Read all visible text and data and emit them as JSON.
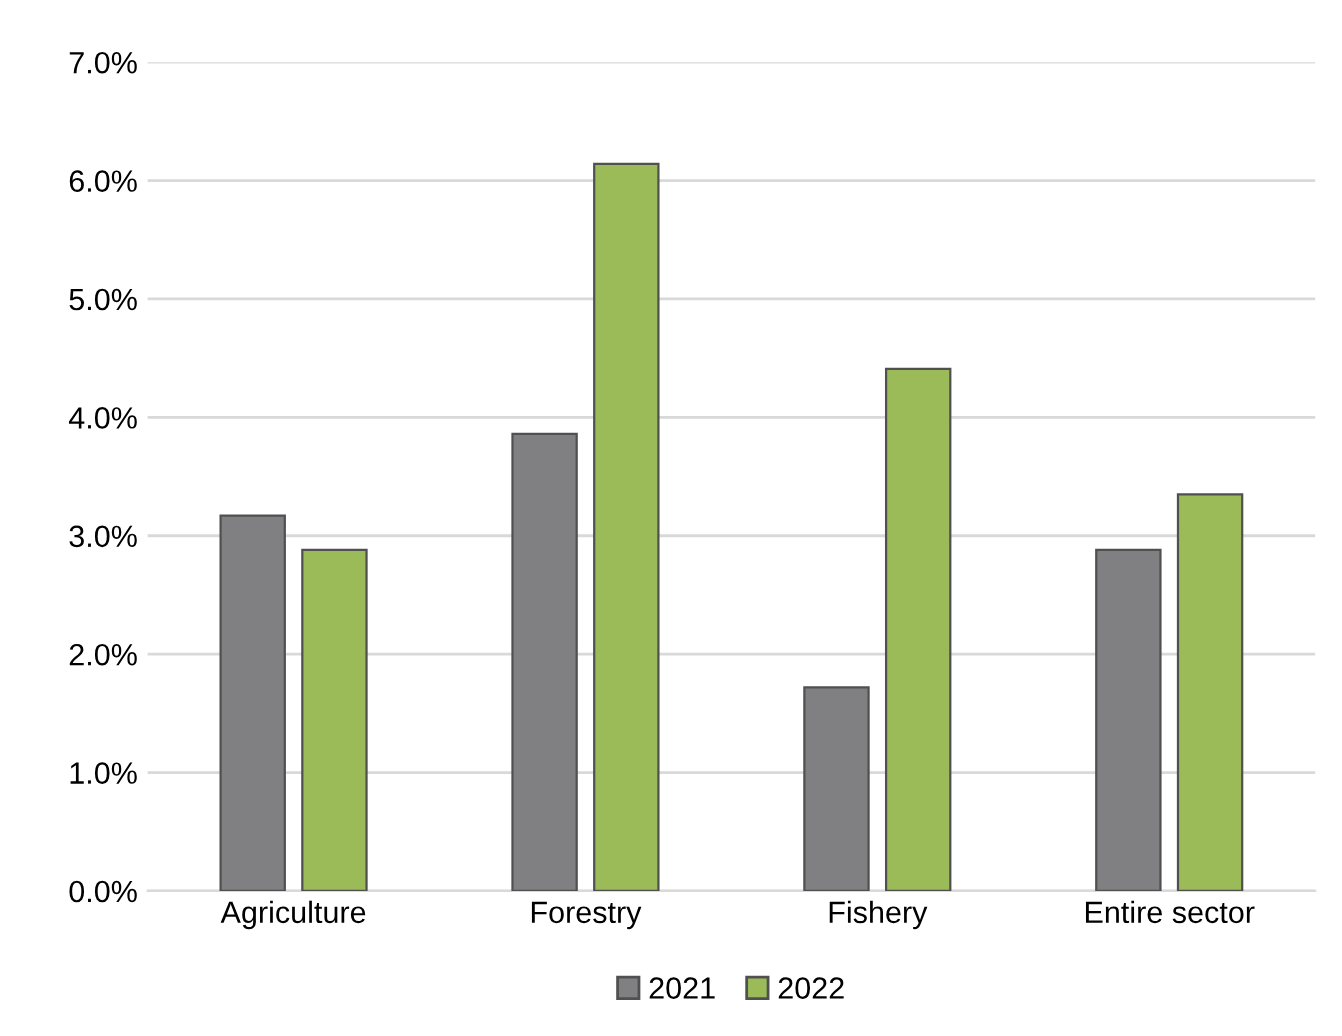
{
  "chart_data": {
    "type": "bar",
    "categories": [
      "Agriculture",
      "Forestry",
      "Fishery",
      "Entire sector"
    ],
    "series": [
      {
        "name": "2021",
        "color": "#808083",
        "values": [
          3.17,
          3.86,
          1.72,
          2.88
        ]
      },
      {
        "name": "2022",
        "color": "#9bbb59",
        "values": [
          2.88,
          6.14,
          4.41,
          3.35
        ]
      }
    ],
    "ylim": [
      0,
      7
    ],
    "yticks": [
      {
        "value": 0,
        "label": "0.0%"
      },
      {
        "value": 1,
        "label": "1.0%"
      },
      {
        "value": 2,
        "label": "2.0%"
      },
      {
        "value": 3,
        "label": "3.0%"
      },
      {
        "value": 4,
        "label": "4.0%"
      },
      {
        "value": 5,
        "label": "5.0%"
      },
      {
        "value": 6,
        "label": "6.0%"
      },
      {
        "value": 7,
        "label": "7.0%"
      }
    ],
    "grid": "y",
    "legend": "bottom"
  }
}
